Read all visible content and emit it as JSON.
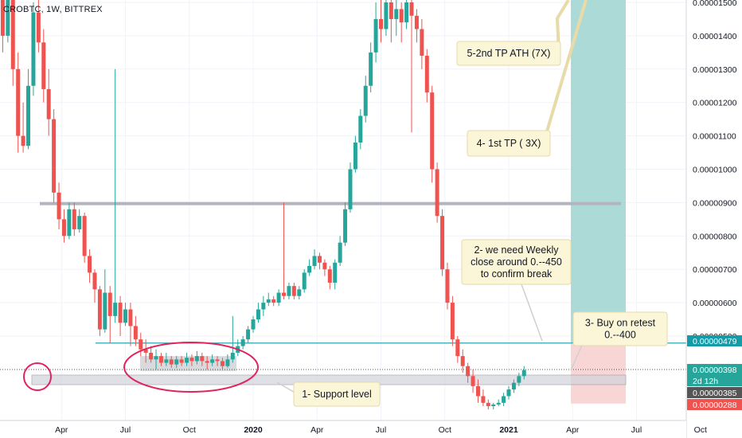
{
  "symbol_label": "CROBTC, 1W, BITTREX",
  "chart_data": {
    "type": "candlestick",
    "symbol": "CROBTC",
    "interval": "1W",
    "exchange": "BITTREX",
    "x_ticks": [
      {
        "label": "Apr",
        "t": 0.25
      },
      {
        "label": "Jul",
        "t": 0.5
      },
      {
        "label": "Oct",
        "t": 0.75
      },
      {
        "label": "2020",
        "t": 1.0
      },
      {
        "label": "Apr",
        "t": 1.25
      },
      {
        "label": "Jul",
        "t": 1.5
      },
      {
        "label": "Oct",
        "t": 1.75
      },
      {
        "label": "2021",
        "t": 2.0
      },
      {
        "label": "Apr",
        "t": 2.25
      },
      {
        "label": "Jul",
        "t": 2.5
      },
      {
        "label": "Oct",
        "t": 2.75
      }
    ],
    "y_ticks": [
      {
        "label": "0.00001500",
        "v": 1500
      },
      {
        "label": "0.00001400",
        "v": 1400
      },
      {
        "label": "0.00001300",
        "v": 1300
      },
      {
        "label": "0.00001200",
        "v": 1200
      },
      {
        "label": "0.00001100",
        "v": 1100
      },
      {
        "label": "0.00001000",
        "v": 1000
      },
      {
        "label": "0.00000900",
        "v": 900
      },
      {
        "label": "0.00000800",
        "v": 800
      },
      {
        "label": "0.00000700",
        "v": 700
      },
      {
        "label": "0.00000600",
        "v": 600
      },
      {
        "label": "0.00000500",
        "v": 500
      }
    ],
    "ylim": [
      300,
      1510
    ],
    "price_labels": [
      {
        "text": "0.00000479",
        "v": 479,
        "color": "#159aa8"
      },
      {
        "text": "0.00000398",
        "v": 398,
        "color": "#26a69a",
        "sub": "2d 12h"
      },
      {
        "text": "0.00000385",
        "v": 369,
        "color": "#555555"
      },
      {
        "text": "0.00000288",
        "v": 352,
        "color": "#ef5350"
      }
    ],
    "candles": [
      [
        -0.08,
        430,
        960,
        405,
        1950
      ],
      [
        -0.06,
        960,
        610,
        590,
        1000
      ],
      [
        -0.04,
        610,
        1060,
        600,
        1100
      ],
      [
        -0.02,
        1060,
        1300,
        1000,
        1400
      ],
      [
        0.0,
        1300,
        1580,
        1250,
        1620
      ],
      [
        0.02,
        1580,
        1400,
        1350,
        1620
      ],
      [
        0.04,
        1400,
        1550,
        1380,
        1600
      ],
      [
        0.06,
        1550,
        1300,
        1250,
        1600
      ],
      [
        0.08,
        1300,
        1100,
        1050,
        1350
      ],
      [
        0.1,
        1100,
        1070,
        1050,
        1200
      ],
      [
        0.12,
        1070,
        1250,
        1060,
        1300
      ],
      [
        0.14,
        1250,
        1470,
        1220,
        1500
      ],
      [
        0.16,
        1470,
        1380,
        1350,
        1530
      ],
      [
        0.18,
        1380,
        1240,
        1200,
        1420
      ],
      [
        0.2,
        1240,
        1150,
        1100,
        1300
      ],
      [
        0.22,
        1150,
        930,
        900,
        1180
      ],
      [
        0.24,
        930,
        850,
        820,
        960
      ],
      [
        0.26,
        850,
        800,
        780,
        880
      ],
      [
        0.28,
        800,
        880,
        790,
        900
      ],
      [
        0.3,
        880,
        820,
        800,
        900
      ],
      [
        0.32,
        820,
        860,
        810,
        880
      ],
      [
        0.34,
        860,
        740,
        720,
        870
      ],
      [
        0.36,
        740,
        690,
        660,
        760
      ],
      [
        0.38,
        690,
        640,
        600,
        700
      ],
      [
        0.4,
        640,
        520,
        500,
        650
      ],
      [
        0.42,
        520,
        630,
        510,
        700
      ],
      [
        0.44,
        630,
        560,
        480,
        650
      ],
      [
        0.46,
        560,
        600,
        540,
        1300
      ],
      [
        0.48,
        600,
        540,
        500,
        620
      ],
      [
        0.5,
        540,
        580,
        530,
        600
      ],
      [
        0.52,
        580,
        530,
        470,
        600
      ],
      [
        0.54,
        530,
        490,
        470,
        560
      ],
      [
        0.56,
        490,
        460,
        440,
        510
      ],
      [
        0.58,
        460,
        450,
        420,
        490
      ],
      [
        0.6,
        450,
        430,
        420,
        470
      ],
      [
        0.62,
        430,
        440,
        400,
        460
      ],
      [
        0.64,
        440,
        420,
        410,
        450
      ],
      [
        0.66,
        420,
        430,
        410,
        450
      ],
      [
        0.68,
        430,
        415,
        405,
        440
      ],
      [
        0.7,
        415,
        430,
        405,
        440
      ],
      [
        0.72,
        430,
        420,
        410,
        440
      ],
      [
        0.74,
        420,
        435,
        410,
        450
      ],
      [
        0.76,
        435,
        425,
        410,
        445
      ],
      [
        0.78,
        425,
        440,
        415,
        455
      ],
      [
        0.8,
        440,
        425,
        410,
        450
      ],
      [
        0.82,
        425,
        420,
        400,
        440
      ],
      [
        0.84,
        420,
        430,
        410,
        445
      ],
      [
        0.86,
        430,
        425,
        410,
        440
      ],
      [
        0.88,
        425,
        410,
        400,
        435
      ],
      [
        0.9,
        410,
        430,
        405,
        445
      ],
      [
        0.92,
        430,
        450,
        420,
        560
      ],
      [
        0.94,
        450,
        470,
        440,
        490
      ],
      [
        0.96,
        470,
        490,
        460,
        500
      ],
      [
        0.98,
        490,
        520,
        480,
        530
      ],
      [
        1.0,
        520,
        550,
        510,
        560
      ],
      [
        1.02,
        550,
        580,
        540,
        600
      ],
      [
        1.04,
        580,
        600,
        560,
        620
      ],
      [
        1.06,
        600,
        610,
        590,
        630
      ],
      [
        1.08,
        610,
        600,
        590,
        620
      ],
      [
        1.1,
        600,
        630,
        590,
        640
      ],
      [
        1.12,
        630,
        620,
        610,
        900
      ],
      [
        1.14,
        620,
        650,
        610,
        660
      ],
      [
        1.16,
        650,
        620,
        610,
        660
      ],
      [
        1.18,
        620,
        640,
        610,
        650
      ],
      [
        1.2,
        640,
        690,
        630,
        700
      ],
      [
        1.22,
        690,
        710,
        680,
        730
      ],
      [
        1.24,
        710,
        740,
        700,
        760
      ],
      [
        1.26,
        740,
        720,
        700,
        750
      ],
      [
        1.28,
        720,
        700,
        680,
        730
      ],
      [
        1.3,
        700,
        660,
        640,
        710
      ],
      [
        1.32,
        660,
        720,
        640,
        730
      ],
      [
        1.34,
        720,
        780,
        710,
        800
      ],
      [
        1.36,
        780,
        880,
        770,
        900
      ],
      [
        1.38,
        880,
        1000,
        870,
        1020
      ],
      [
        1.4,
        1000,
        1080,
        990,
        1100
      ],
      [
        1.42,
        1080,
        1160,
        1060,
        1180
      ],
      [
        1.44,
        1160,
        1250,
        1140,
        1280
      ],
      [
        1.46,
        1250,
        1350,
        1230,
        1380
      ],
      [
        1.48,
        1350,
        1450,
        1320,
        1500
      ],
      [
        1.5,
        1450,
        1420,
        1380,
        1520
      ],
      [
        1.52,
        1420,
        1500,
        1400,
        1550
      ],
      [
        1.54,
        1500,
        1450,
        1380,
        1520
      ],
      [
        1.56,
        1450,
        1480,
        1400,
        1520
      ],
      [
        1.58,
        1480,
        1440,
        1380,
        1500
      ],
      [
        1.6,
        1440,
        1500,
        1420,
        1550
      ],
      [
        1.62,
        1500,
        1460,
        1110,
        1530
      ],
      [
        1.64,
        1460,
        1420,
        1380,
        1480
      ],
      [
        1.66,
        1420,
        1340,
        1300,
        1450
      ],
      [
        1.68,
        1340,
        1230,
        1200,
        1360
      ],
      [
        1.7,
        1230,
        1000,
        960,
        1250
      ],
      [
        1.72,
        1000,
        860,
        840,
        1020
      ],
      [
        1.74,
        860,
        700,
        680,
        880
      ],
      [
        1.76,
        700,
        600,
        580,
        720
      ],
      [
        1.78,
        600,
        490,
        470,
        620
      ],
      [
        1.8,
        490,
        440,
        420,
        500
      ],
      [
        1.82,
        440,
        410,
        390,
        460
      ],
      [
        1.84,
        410,
        380,
        360,
        420
      ],
      [
        1.86,
        380,
        350,
        330,
        400
      ],
      [
        1.88,
        350,
        320,
        300,
        370
      ],
      [
        1.9,
        320,
        300,
        290,
        340
      ],
      [
        1.92,
        300,
        290,
        280,
        310
      ],
      [
        1.94,
        290,
        295,
        280,
        300
      ],
      [
        1.96,
        295,
        300,
        290,
        310
      ],
      [
        1.98,
        300,
        320,
        290,
        330
      ],
      [
        2.0,
        320,
        340,
        310,
        350
      ],
      [
        2.02,
        340,
        360,
        330,
        370
      ],
      [
        2.04,
        360,
        380,
        350,
        390
      ],
      [
        2.06,
        380,
        398,
        370,
        410
      ]
    ],
    "levels": [
      {
        "name": "resistance",
        "v": 897,
        "color": "#b2b5be"
      },
      {
        "name": "breakout",
        "v": 479,
        "color": "#159aa8"
      }
    ],
    "annotations": [
      {
        "id": "note1",
        "text": "1- Support level"
      },
      {
        "id": "note2",
        "lines": [
          "2- we need Weekly",
          "close around 0.--450",
          "to confirm break"
        ]
      },
      {
        "id": "note3",
        "lines": [
          "3- Buy on retest",
          "0.--400"
        ]
      },
      {
        "id": "note4",
        "text": "4- 1st TP ( 3X)"
      },
      {
        "id": "note5",
        "text": "5-2nd TP ATH (7X)"
      }
    ]
  }
}
